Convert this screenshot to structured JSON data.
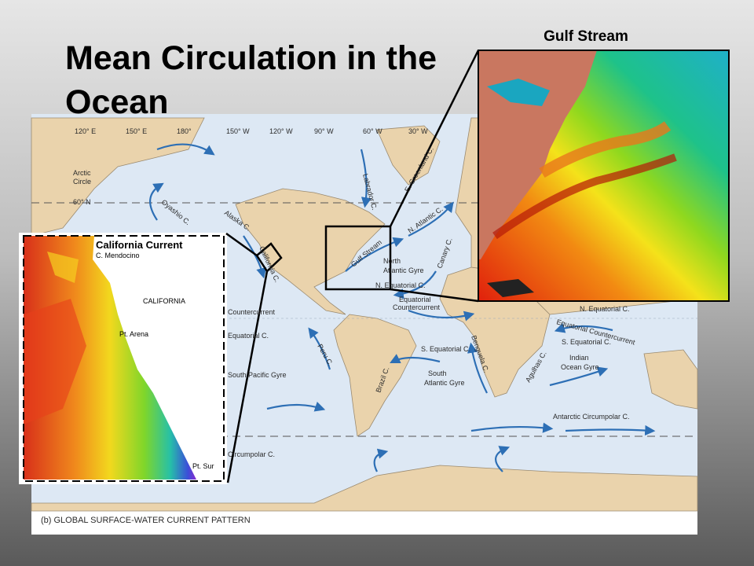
{
  "slide": {
    "title": "Mean Circulation in the Ocean",
    "gulf_stream_label": "Gulf Stream",
    "california_label": "California Current"
  },
  "map": {
    "caption": "(b) GLOBAL SURFACE-WATER CURRENT PATTERN",
    "labels": [
      "120° E",
      "150° E",
      "180°",
      "150° W",
      "120° W",
      "90° W",
      "60° W",
      "30° W",
      "Arctic",
      "Circle",
      "60° N",
      "Oyashio C.",
      "Alaska C.",
      "California C.",
      "Labrador C.",
      "E. Greenland C.",
      "N. Atlantic C.",
      "Canary C.",
      "Gulf Stream",
      "North",
      "Atlantic Gyre",
      "N. Equatorial C.",
      "Equatorial",
      "Countercurrent",
      "S. Equatorial C.",
      "Brazil C.",
      "South",
      "Atlantic Gyre",
      "Benguela C.",
      "Peru C.",
      "Agulhas C.",
      "Indian",
      "Ocean Gyre",
      "S. Equatorial C.",
      "Equatorial Countercurrent",
      "N. Equatorial C.",
      "Antarctic Circumpolar C.",
      "South Pacific Gyre",
      "Equatorial C.",
      "Countercurrent",
      "Circumpolar C."
    ]
  },
  "california_inset": {
    "labels": [
      "C. Mendocino",
      "CALIFORNIA",
      "Pt. Arena",
      "Pt. Sur"
    ]
  }
}
